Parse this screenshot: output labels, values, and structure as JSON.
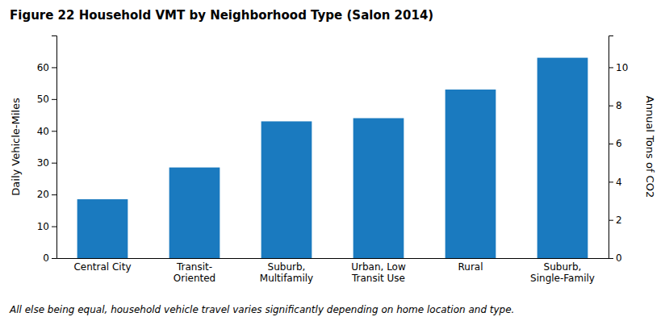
{
  "chart_data": {
    "type": "bar",
    "title": "Figure 22 Household VMT by Neighborhood Type (Salon 2014)",
    "categories": [
      "Central City",
      "Transit-\nOriented",
      "Suburb,\nMultifamily",
      "Urban, Low\nTransit Use",
      "Rural",
      "Suburb,\nSingle-Family"
    ],
    "values": [
      18.5,
      28.5,
      43.0,
      44.0,
      53.0,
      63.0
    ],
    "color": "#1a7abf",
    "ylabel": "Daily Vehicle-Miles",
    "ylim": [
      0,
      70
    ],
    "yticks": [
      0,
      10,
      20,
      30,
      40,
      50,
      60
    ],
    "y2label": "Annual Tons of CO2",
    "y2lim": [
      0,
      11.666666666666666
    ],
    "y2ticks": [
      0,
      2,
      4,
      6,
      8,
      10
    ],
    "annotations": [
      "All else being equal, household vehicle travel varies significantly depending on home location and type."
    ],
    "grid": false
  }
}
